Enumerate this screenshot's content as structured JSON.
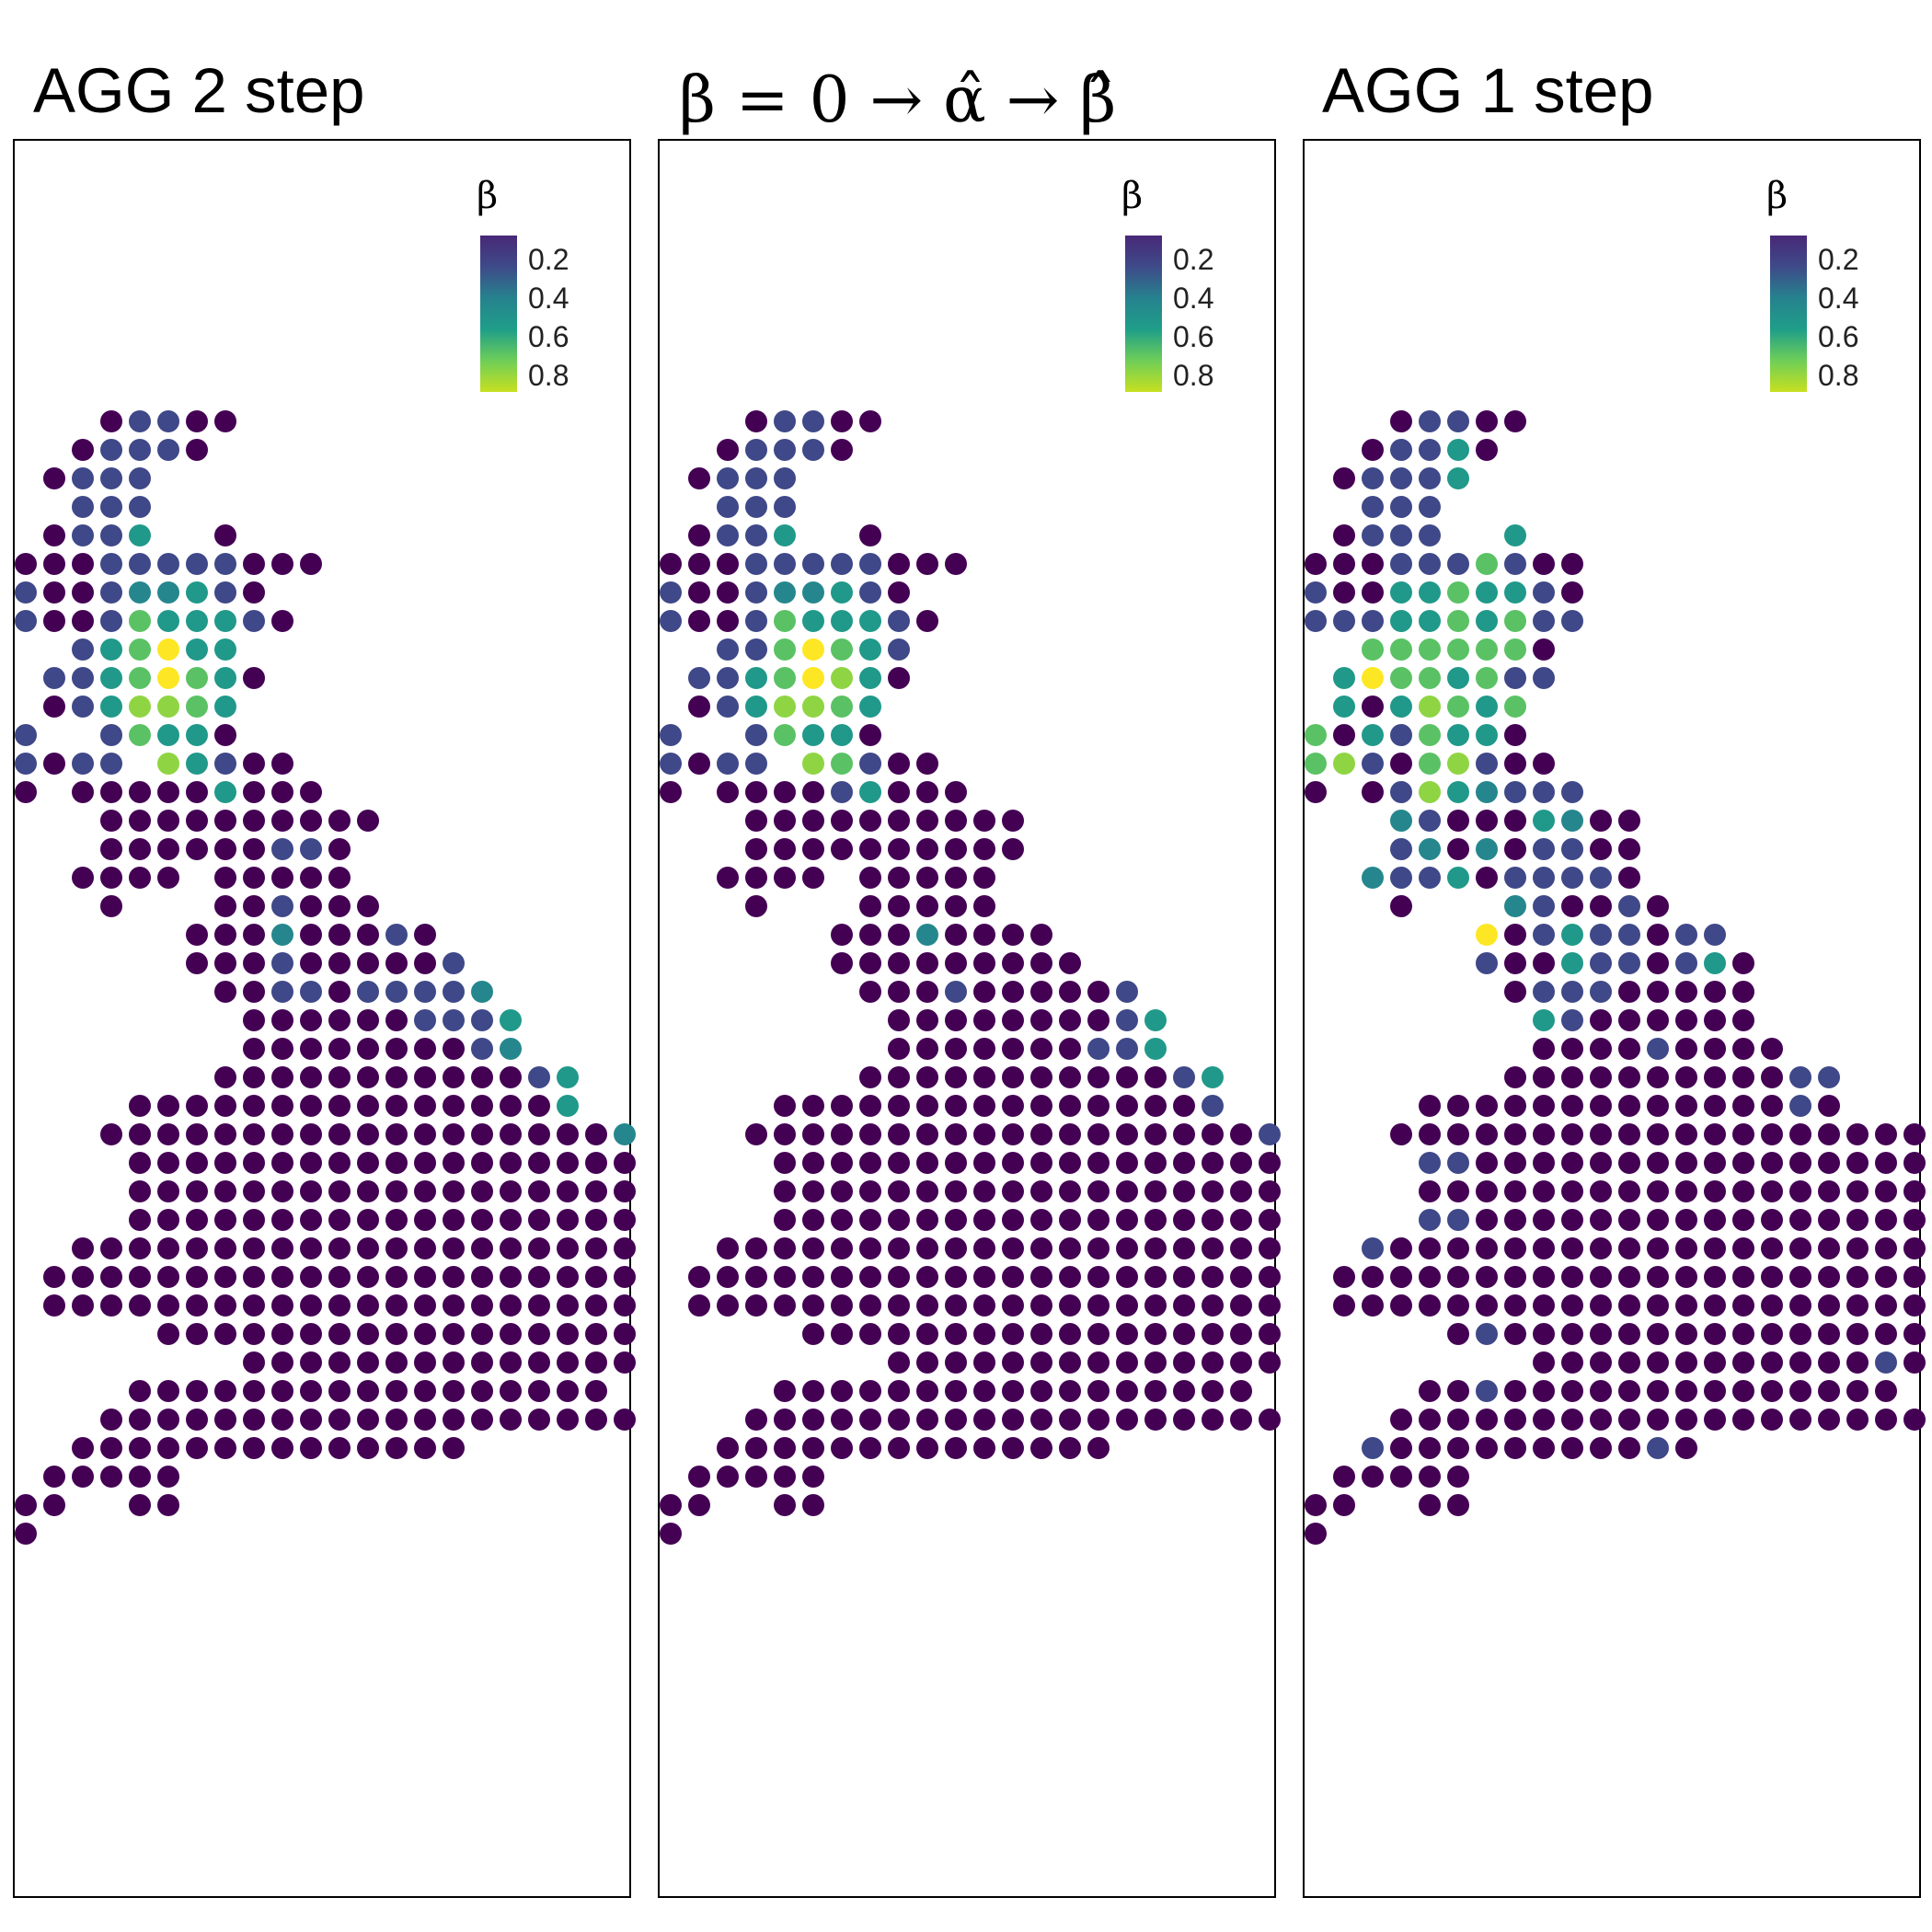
{
  "chart_data": [
    {
      "type": "scatter",
      "title": "AGG 2 step",
      "legend": {
        "title": "β",
        "ticks": [
          "0.2",
          "0.4",
          "0.6",
          "0.8"
        ],
        "range": [
          0.1,
          0.9
        ],
        "placement": "top-right"
      },
      "grid": false,
      "value_classes": {
        "d": 0.05,
        "b": 0.25,
        "c": 0.45,
        "t": 0.55,
        "g": 0.7,
        "l": 0.8,
        "y": 0.88
      },
      "rows": [
        "___dbbdd____________",
        "__dbbbd_____________",
        "_dbbb_______________",
        "__bbb_______________",
        "_dbbt__d____________",
        "dddbbbbbddd_________",
        "bddbcctbd___________",
        "bddbgtttbd__________",
        "__btgytt____________",
        "_bbtgygtd___________",
        "_dbtllgt____________",
        "b__bgttd____________",
        "bdbb_ltbdd__________",
        "d_dddddtddd_________",
        "___dddddddddd_______",
        "___ddddddbbd________",
        "__dddd_ddddd________",
        "___d___ddbddd_______",
        "______dddcdddbd_____",
        "______dddbdddddb____",
        "_______ddbbdbbbbc___",
        "________ddddddbbbt__",
        "________ddddddddbc__",
        "_______dddddddddddbt",
        "____dddddddddddddddt"
      ],
      "rows_south": [
        "___ddddddddddddddddddc__",
        "____ddddddddddddddddddbb",
        "____ddddddddddddddddddbb",
        "____dddddddddddddddddddb",
        "__dddddddddddddddddddd__",
        "_dddddddddddddddddddddc_",
        "_ddddddddddddddddddddd__",
        "_____ddddddddddddddddd__",
        "________ddddddddddddddd_",
        "____ddddddddddddddddd___",
        "___ddddddddddddddddddd__",
        "__dddddddddddddd________",
        "_ddddd__________________",
        "dd__dd__________________",
        "d_______________________"
      ]
    },
    {
      "type": "scatter",
      "title": "β = 0 → α̂ → β̂",
      "legend": {
        "title": "β",
        "ticks": [
          "0.2",
          "0.4",
          "0.6",
          "0.8"
        ],
        "range": [
          0.1,
          0.9
        ],
        "placement": "top-right"
      },
      "grid": false,
      "value_classes": {
        "d": 0.05,
        "b": 0.25,
        "c": 0.45,
        "t": 0.55,
        "g": 0.7,
        "l": 0.8,
        "y": 0.88
      },
      "rows": [
        "___dbbdd____________",
        "__dbbbd_____________",
        "_dbbb_______________",
        "__bbb_______________",
        "_dbbt__d____________",
        "dddbbbbbddd_________",
        "bddbcctbd___________",
        "bddbgtttbd__________",
        "__bbgygtb___________",
        "_bbtgyltd___________",
        "_dbtllgt____________",
        "b__bgttd____________",
        "bdbb_lgbdd__________",
        "d_ddddbtddd_________",
        "___dddddddddd_______",
        "___dddddddddd_______",
        "__dddd_ddddd________",
        "___d___ddddd________",
        "______dddcdddd______",
        "______ddddddddd_____",
        "_______dddbdddddb___",
        "________ddddddddbt__",
        "________dddddddbbt__",
        "_______dddddddddddbt",
        "____dddddddddddddddb"
      ],
      "rows_south": [
        "___ddddddddddddddddddb__",
        "____ddddddddddddddddddbb",
        "____ddddddddddddddddddbd",
        "____dddddddddddddddddddd",
        "__dddddddddddddddddddd__",
        "_dddddddddddddddddddddb_",
        "_ddddddddddddddddddddd__",
        "_____ddddddddddddddddd__",
        "________dddddddddddddddd",
        "____ddddddddddddddddd___",
        "___ddddddddddddddddddd__",
        "__dddddddddddddd________",
        "_ddddd__________________",
        "dd__dd__________________",
        "d_______________________"
      ]
    },
    {
      "type": "scatter",
      "title": "AGG 1 step",
      "legend": {
        "title": "β",
        "ticks": [
          "0.2",
          "0.4",
          "0.6",
          "0.8"
        ],
        "range": [
          0.1,
          0.9
        ],
        "placement": "top-right"
      },
      "grid": false,
      "value_classes": {
        "d": 0.05,
        "b": 0.25,
        "c": 0.45,
        "t": 0.55,
        "g": 0.7,
        "l": 0.8,
        "y": 0.88
      },
      "rows": [
        "___dbbdd____________",
        "__dbbtd_____________",
        "_dbbbt______________",
        "__bbb_______________",
        "_dbbb__t____________",
        "dddbbbgbdd__________",
        "bddttgttbd__________",
        "bbbttgtgbb__________",
        "__ggggggd___________",
        "_tyggtgbb___________",
        "_tdtlgtg____________",
        "gdtbgttd____________",
        "glbdglbdd___________",
        "d_dbltcbbb__________",
        "___cbdddtcdd________",
        "___bcdcdbbdd________",
        "__cbbtdbbbbd________",
        "___d___cbddbd_______",
        "______ydbtbbdbb_____",
        "______bddtbbdbtd____",
        "_______dbbbddddd____",
        "________tbdddddd____",
        "________ddddbdddd___",
        "_______ddddddddddbb_",
        "____dddddddddddddbd_"
      ],
      "rows_south": [
        "___dddddddddddddddddddtdd",
        "____bbdddddddddddddddddddd",
        "____dddddddddddddddddddddd",
        "____bbdddddddddddddddddddd",
        "__bdddddddddddddddddddd___",
        "_dddddddddddddddddddddd___",
        "_ddddddddddddddddddddd____",
        "_____dbddddddddddddddd____",
        "________ddddddddddddbd____",
        "____ddbdddddddddddddd_____",
        "___ddddddddddddddddddd____",
        "__bdddddddddbd___________",
        "_ddddd___________________",
        "dd__dd___________________",
        "d________________________"
      ]
    }
  ]
}
